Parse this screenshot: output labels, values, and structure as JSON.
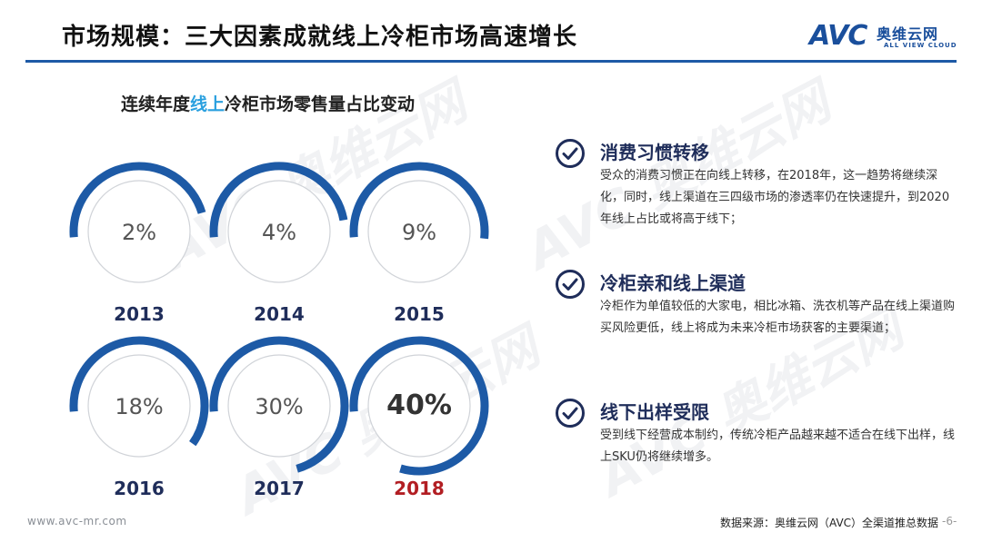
{
  "header": {
    "title": "市场规模：三大因素成就线上冷柜市场高速增长",
    "logo_text": "AVC",
    "logo_cn": "奥维云网",
    "logo_en": "ALL VIEW CLOUD"
  },
  "chart_data": {
    "type": "ring",
    "title_prefix": "连续年度",
    "title_highlight": "线上",
    "title_suffix": "冷柜市场零售量占比变动",
    "categories": [
      "2013",
      "2014",
      "2015",
      "2016",
      "2017",
      "2018"
    ],
    "values": [
      2,
      4,
      9,
      18,
      30,
      40
    ],
    "value_labels": [
      "2%",
      "4%",
      "9%",
      "18%",
      "30%",
      "40%"
    ],
    "highlight_index": 5,
    "highlight_label_color": "#b21e23",
    "ring_color": "#1d5aa6",
    "track_color": "#d0d3d8"
  },
  "factors": [
    {
      "heading": "消费习惯转移",
      "body": "受众的消费习惯正在向线上转移，在2018年，这一趋势将继续深化，同时，线上渠道在三四级市场的渗透率仍在快速提升，到2020年线上占比或将高于线下；"
    },
    {
      "heading": "冷柜亲和线上渠道",
      "body": "冷柜作为单值较低的大家电，相比冰箱、洗衣机等产品在线上渠道购买风险更低，线上将成为未来冷柜市场获客的主要渠道；"
    },
    {
      "heading": "线下出样受限",
      "body": "受到线下经营成本制约，传统冷柜产品越来越不适合在线下出样，线上SKU仍将继续增多。"
    }
  ],
  "footer": {
    "website": "www.avc-mr.com",
    "source": "数据来源：奥维云网（AVC）全渠道推总数据",
    "page": "-6-"
  },
  "colors": {
    "accent": "#1d5aa6",
    "heading": "#1f2d5a",
    "highlight": "#2aa0df"
  },
  "icons": {
    "factor": "check-circle-icon"
  }
}
